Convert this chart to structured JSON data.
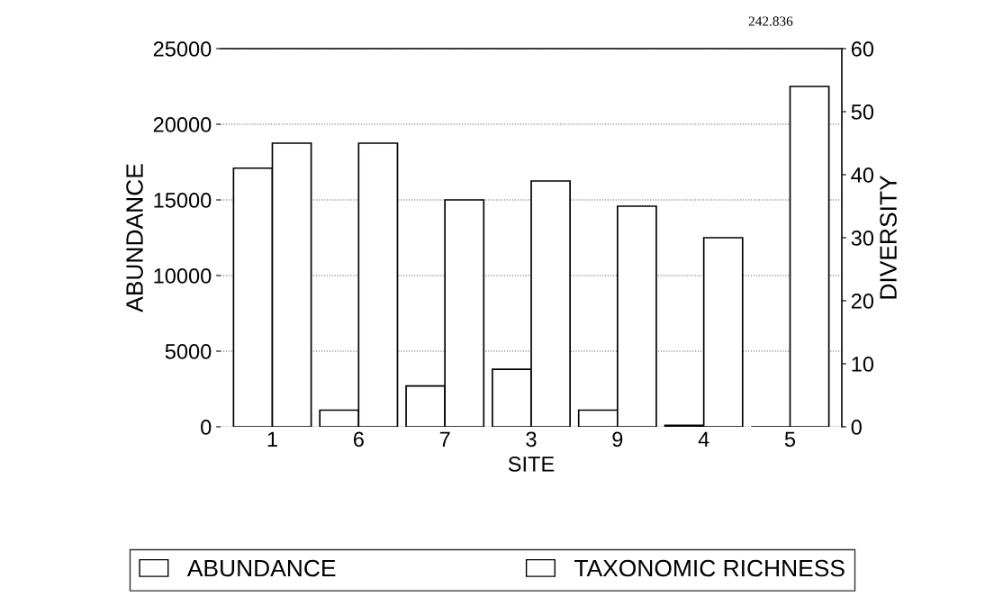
{
  "chart_data": {
    "type": "bar",
    "xlabel": "SITE",
    "ylabel": "ABUNDANCE",
    "y2label": "DIVERSITY",
    "categories": [
      "1",
      "6",
      "7",
      "3",
      "9",
      "4",
      "5"
    ],
    "series": [
      {
        "name": "ABUNDANCE",
        "color": "#ffffff",
        "values": [
          17100,
          1100,
          2700,
          3800,
          1100,
          100,
          null
        ]
      },
      {
        "name": "TAXONOMIC RICHNESS",
        "color": "#ffffff",
        "axis": "y2",
        "values": [
          45,
          45,
          36,
          39,
          35,
          30,
          54
        ]
      }
    ],
    "ylim": [
      0,
      25000
    ],
    "yticks": [
      0,
      5000,
      10000,
      15000,
      20000,
      25000
    ],
    "y2lim": [
      0,
      60
    ],
    "y2ticks": [
      0,
      10,
      20,
      30,
      40,
      50,
      60
    ],
    "annotations": [
      "242.836"
    ],
    "grid": "y",
    "legend": "bottom"
  }
}
